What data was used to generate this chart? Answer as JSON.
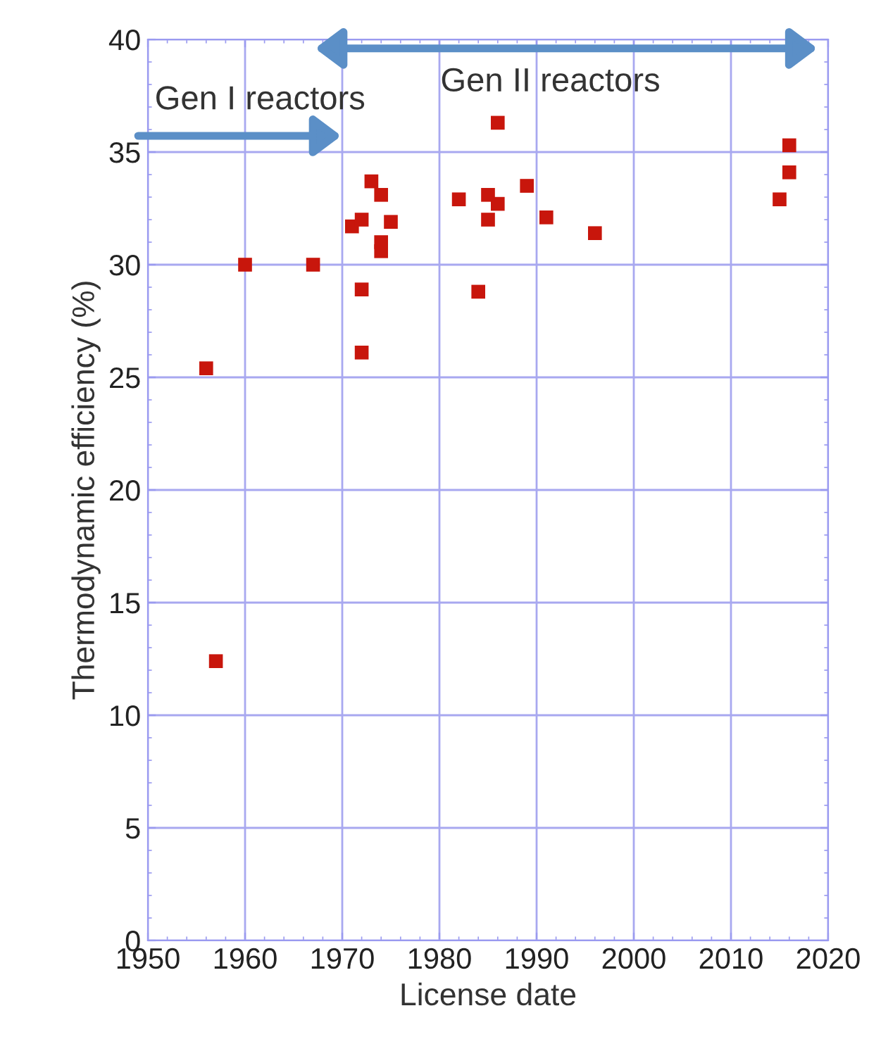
{
  "chart_data": {
    "type": "scatter",
    "xlabel": "License date",
    "ylabel": "Thermodynamic efficiency (%)",
    "x": [
      1956,
      1957,
      1960,
      1967,
      1971,
      1972,
      1972,
      1972,
      1973,
      1974,
      1974,
      1974,
      1975,
      1982,
      1984,
      1985,
      1985,
      1986,
      1986,
      1989,
      1991,
      1996,
      2015,
      2016,
      2016
    ],
    "series": [
      {
        "color": "#c8160c",
        "values": [
          25.4,
          12.4,
          30,
          30,
          31.7,
          32.0,
          28.9,
          26.1,
          33.7,
          33.1,
          31.0,
          30.6,
          31.9,
          32.9,
          28.8,
          33.1,
          32.0,
          36.3,
          32.7,
          33.5,
          32.1,
          31.4,
          32.9,
          34.1,
          35.3
        ]
      }
    ],
    "marker": "square",
    "xlim": [
      1950,
      2020
    ],
    "ylim": [
      0,
      40
    ],
    "xticks": [
      1950,
      1960,
      1970,
      1980,
      1990,
      2000,
      2010,
      2020
    ],
    "yticks": [
      0,
      5,
      10,
      15,
      20,
      25,
      30,
      35,
      40
    ],
    "grid": true,
    "annotations": [
      "Gen I reactors",
      "Gen II reactors"
    ]
  }
}
